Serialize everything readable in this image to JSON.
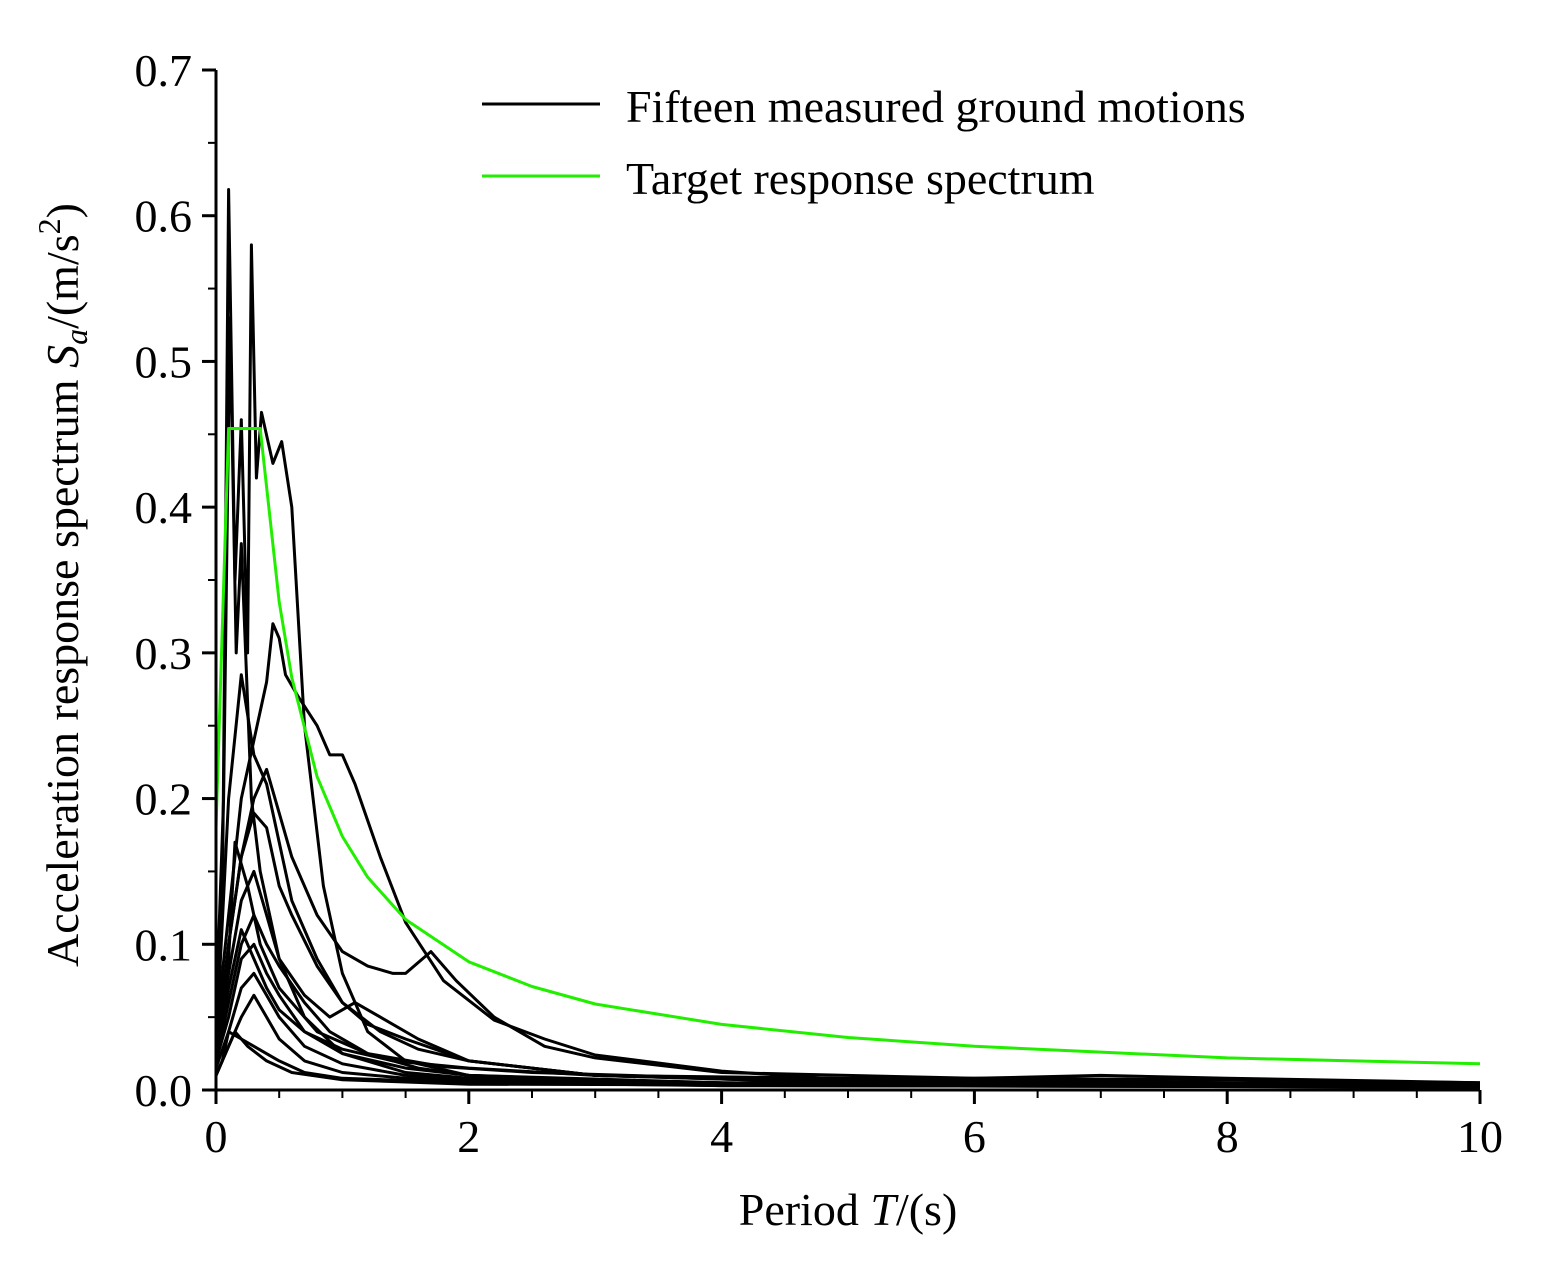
{
  "chart_data": {
    "type": "line",
    "xlabel_parts": [
      "Period ",
      "T",
      "/(s)"
    ],
    "ylabel_parts": [
      "Acceleration response spectrum ",
      "S",
      "a",
      "/(m/s",
      "2",
      ")"
    ],
    "xlim": [
      0,
      10
    ],
    "ylim": [
      0,
      0.7
    ],
    "xticks": [
      0,
      2,
      4,
      6,
      8,
      10
    ],
    "xtick_labels": [
      "0",
      "2",
      "4",
      "6",
      "8",
      "10"
    ],
    "yticks": [
      0,
      0.1,
      0.2,
      0.3,
      0.4,
      0.5,
      0.6,
      0.7
    ],
    "ytick_labels": [
      "0.0",
      "0.1",
      "0.2",
      "0.3",
      "0.4",
      "0.5",
      "0.6",
      "0.7"
    ],
    "grid": false,
    "legend_position": "top-right",
    "legend": [
      {
        "label": "Fifteen measured ground motions",
        "color": "#000000"
      },
      {
        "label": "Target response spectrum",
        "color": "#22ee00"
      }
    ],
    "series": [
      {
        "group": "measured",
        "color": "#000000",
        "points": [
          [
            0,
            0.06
          ],
          [
            0.05,
            0.12
          ],
          [
            0.1,
            0.618
          ],
          [
            0.15,
            0.35
          ],
          [
            0.2,
            0.46
          ],
          [
            0.25,
            0.3
          ],
          [
            0.28,
            0.58
          ],
          [
            0.32,
            0.42
          ],
          [
            0.36,
            0.465
          ],
          [
            0.45,
            0.43
          ],
          [
            0.52,
            0.445
          ],
          [
            0.6,
            0.4
          ],
          [
            0.7,
            0.25
          ],
          [
            0.85,
            0.14
          ],
          [
            1.0,
            0.08
          ],
          [
            1.2,
            0.04
          ],
          [
            1.5,
            0.02
          ],
          [
            2,
            0.01
          ],
          [
            3,
            0.006
          ],
          [
            5,
            0.004
          ],
          [
            7,
            0.003
          ],
          [
            10,
            0.002
          ]
        ]
      },
      {
        "group": "measured",
        "color": "#000000",
        "points": [
          [
            0,
            0.05
          ],
          [
            0.06,
            0.2
          ],
          [
            0.11,
            0.53
          ],
          [
            0.16,
            0.3
          ],
          [
            0.2,
            0.375
          ],
          [
            0.28,
            0.2
          ],
          [
            0.35,
            0.15
          ],
          [
            0.5,
            0.09
          ],
          [
            0.7,
            0.05
          ],
          [
            1.0,
            0.025
          ],
          [
            1.5,
            0.012
          ],
          [
            2,
            0.008
          ],
          [
            4,
            0.004
          ],
          [
            10,
            0.002
          ]
        ]
      },
      {
        "group": "measured",
        "color": "#000000",
        "points": [
          [
            0,
            0.04
          ],
          [
            0.1,
            0.12
          ],
          [
            0.2,
            0.2
          ],
          [
            0.3,
            0.24
          ],
          [
            0.4,
            0.28
          ],
          [
            0.45,
            0.32
          ],
          [
            0.5,
            0.31
          ],
          [
            0.55,
            0.285
          ],
          [
            0.65,
            0.27
          ],
          [
            0.8,
            0.25
          ],
          [
            0.9,
            0.23
          ],
          [
            1.0,
            0.23
          ],
          [
            1.1,
            0.21
          ],
          [
            1.3,
            0.16
          ],
          [
            1.5,
            0.115
          ],
          [
            1.8,
            0.075
          ],
          [
            2.2,
            0.048
          ],
          [
            2.6,
            0.035
          ],
          [
            3,
            0.024
          ],
          [
            4,
            0.013
          ],
          [
            5,
            0.007
          ],
          [
            6,
            0.008
          ],
          [
            7,
            0.01
          ],
          [
            8,
            0.008
          ],
          [
            10,
            0.005
          ]
        ]
      },
      {
        "group": "measured",
        "color": "#000000",
        "points": [
          [
            0,
            0.03
          ],
          [
            0.1,
            0.1
          ],
          [
            0.2,
            0.16
          ],
          [
            0.3,
            0.2
          ],
          [
            0.4,
            0.22
          ],
          [
            0.5,
            0.19
          ],
          [
            0.6,
            0.16
          ],
          [
            0.8,
            0.12
          ],
          [
            1.0,
            0.095
          ],
          [
            1.2,
            0.085
          ],
          [
            1.4,
            0.08
          ],
          [
            1.5,
            0.08
          ],
          [
            1.7,
            0.095
          ],
          [
            1.9,
            0.075
          ],
          [
            2.2,
            0.05
          ],
          [
            2.6,
            0.03
          ],
          [
            3,
            0.022
          ],
          [
            4,
            0.012
          ],
          [
            6,
            0.008
          ],
          [
            8,
            0.007
          ],
          [
            10,
            0.005
          ]
        ]
      },
      {
        "group": "measured",
        "color": "#000000",
        "points": [
          [
            0,
            0.03
          ],
          [
            0.1,
            0.2
          ],
          [
            0.2,
            0.285
          ],
          [
            0.3,
            0.23
          ],
          [
            0.4,
            0.21
          ],
          [
            0.5,
            0.17
          ],
          [
            0.6,
            0.13
          ],
          [
            0.8,
            0.09
          ],
          [
            1.0,
            0.06
          ],
          [
            1.2,
            0.045
          ],
          [
            1.5,
            0.035
          ],
          [
            2,
            0.02
          ],
          [
            3,
            0.01
          ],
          [
            5,
            0.005
          ],
          [
            10,
            0.003
          ]
        ]
      },
      {
        "group": "measured",
        "color": "#000000",
        "points": [
          [
            0,
            0.02
          ],
          [
            0.1,
            0.1
          ],
          [
            0.2,
            0.16
          ],
          [
            0.3,
            0.19
          ],
          [
            0.4,
            0.18
          ],
          [
            0.5,
            0.14
          ],
          [
            0.6,
            0.12
          ],
          [
            0.8,
            0.085
          ],
          [
            1.0,
            0.06
          ],
          [
            1.3,
            0.04
          ],
          [
            1.6,
            0.028
          ],
          [
            2,
            0.02
          ],
          [
            3,
            0.01
          ],
          [
            5,
            0.005
          ],
          [
            10,
            0.003
          ]
        ]
      },
      {
        "group": "measured",
        "color": "#000000",
        "points": [
          [
            0,
            0.03
          ],
          [
            0.1,
            0.08
          ],
          [
            0.2,
            0.13
          ],
          [
            0.3,
            0.15
          ],
          [
            0.4,
            0.12
          ],
          [
            0.5,
            0.09
          ],
          [
            0.7,
            0.065
          ],
          [
            0.9,
            0.05
          ],
          [
            1.1,
            0.06
          ],
          [
            1.3,
            0.05
          ],
          [
            1.6,
            0.035
          ],
          [
            2,
            0.02
          ],
          [
            3,
            0.01
          ],
          [
            10,
            0.003
          ]
        ]
      },
      {
        "group": "measured",
        "color": "#000000",
        "points": [
          [
            0,
            0.02
          ],
          [
            0.1,
            0.06
          ],
          [
            0.2,
            0.1
          ],
          [
            0.3,
            0.12
          ],
          [
            0.4,
            0.1
          ],
          [
            0.5,
            0.085
          ],
          [
            0.7,
            0.06
          ],
          [
            0.9,
            0.04
          ],
          [
            1.2,
            0.025
          ],
          [
            1.6,
            0.015
          ],
          [
            2,
            0.01
          ],
          [
            4,
            0.005
          ],
          [
            10,
            0.002
          ]
        ]
      },
      {
        "group": "measured",
        "color": "#000000",
        "points": [
          [
            0,
            0.02
          ],
          [
            0.1,
            0.05
          ],
          [
            0.2,
            0.09
          ],
          [
            0.3,
            0.1
          ],
          [
            0.4,
            0.08
          ],
          [
            0.5,
            0.065
          ],
          [
            0.7,
            0.04
          ],
          [
            1.0,
            0.025
          ],
          [
            1.5,
            0.015
          ],
          [
            2,
            0.01
          ],
          [
            4,
            0.004
          ],
          [
            10,
            0.002
          ]
        ]
      },
      {
        "group": "measured",
        "color": "#000000",
        "points": [
          [
            0,
            0.015
          ],
          [
            0.1,
            0.04
          ],
          [
            0.2,
            0.07
          ],
          [
            0.3,
            0.08
          ],
          [
            0.4,
            0.065
          ],
          [
            0.5,
            0.05
          ],
          [
            0.7,
            0.03
          ],
          [
            1.0,
            0.018
          ],
          [
            1.5,
            0.01
          ],
          [
            2,
            0.007
          ],
          [
            4,
            0.004
          ],
          [
            10,
            0.002
          ]
        ]
      },
      {
        "group": "measured",
        "color": "#000000",
        "points": [
          [
            0,
            0.01
          ],
          [
            0.1,
            0.03
          ],
          [
            0.2,
            0.05
          ],
          [
            0.3,
            0.065
          ],
          [
            0.4,
            0.05
          ],
          [
            0.5,
            0.035
          ],
          [
            0.7,
            0.02
          ],
          [
            1.0,
            0.012
          ],
          [
            1.5,
            0.008
          ],
          [
            2,
            0.006
          ],
          [
            4,
            0.003
          ],
          [
            10,
            0.002
          ]
        ]
      },
      {
        "group": "measured",
        "color": "#000000",
        "points": [
          [
            0,
            0.01
          ],
          [
            0.05,
            0.02
          ],
          [
            0.1,
            0.04
          ],
          [
            0.2,
            0.035
          ],
          [
            0.3,
            0.03
          ],
          [
            0.5,
            0.02
          ],
          [
            0.7,
            0.012
          ],
          [
            1.0,
            0.008
          ],
          [
            2,
            0.005
          ],
          [
            4,
            0.003
          ],
          [
            10,
            0.002
          ]
        ]
      },
      {
        "group": "measured",
        "color": "#000000",
        "points": [
          [
            0,
            0.01
          ],
          [
            0.1,
            0.03
          ],
          [
            0.15,
            0.04
          ],
          [
            0.25,
            0.03
          ],
          [
            0.4,
            0.02
          ],
          [
            0.6,
            0.012
          ],
          [
            1.0,
            0.007
          ],
          [
            2,
            0.004
          ],
          [
            10,
            0.002
          ]
        ]
      },
      {
        "group": "measured",
        "color": "#000000",
        "points": [
          [
            0,
            0.02
          ],
          [
            0.1,
            0.07
          ],
          [
            0.2,
            0.11
          ],
          [
            0.3,
            0.09
          ],
          [
            0.4,
            0.07
          ],
          [
            0.5,
            0.055
          ],
          [
            0.7,
            0.04
          ],
          [
            1.0,
            0.028
          ],
          [
            1.4,
            0.02
          ],
          [
            2,
            0.015
          ],
          [
            3,
            0.01
          ],
          [
            5,
            0.006
          ],
          [
            10,
            0.003
          ]
        ]
      },
      {
        "group": "measured",
        "color": "#000000",
        "points": [
          [
            0,
            0.03
          ],
          [
            0.1,
            0.09
          ],
          [
            0.15,
            0.17
          ],
          [
            0.25,
            0.14
          ],
          [
            0.35,
            0.1
          ],
          [
            0.5,
            0.07
          ],
          [
            0.8,
            0.04
          ],
          [
            1.2,
            0.025
          ],
          [
            1.8,
            0.016
          ],
          [
            2.5,
            0.012
          ],
          [
            4,
            0.008
          ],
          [
            6,
            0.006
          ],
          [
            10,
            0.004
          ]
        ]
      },
      {
        "group": "target",
        "color": "#22ee00",
        "points": [
          [
            0,
            0.18
          ],
          [
            0.1,
            0.454
          ],
          [
            0.35,
            0.454
          ],
          [
            0.5,
            0.335
          ],
          [
            0.6,
            0.283
          ],
          [
            0.8,
            0.215
          ],
          [
            1.0,
            0.174
          ],
          [
            1.2,
            0.146
          ],
          [
            1.5,
            0.117
          ],
          [
            2,
            0.088
          ],
          [
            2.5,
            0.071
          ],
          [
            3,
            0.059
          ],
          [
            4,
            0.045
          ],
          [
            5,
            0.036
          ],
          [
            6,
            0.03
          ],
          [
            7,
            0.026
          ],
          [
            8,
            0.022
          ],
          [
            9,
            0.02
          ],
          [
            10,
            0.018
          ]
        ]
      }
    ]
  }
}
